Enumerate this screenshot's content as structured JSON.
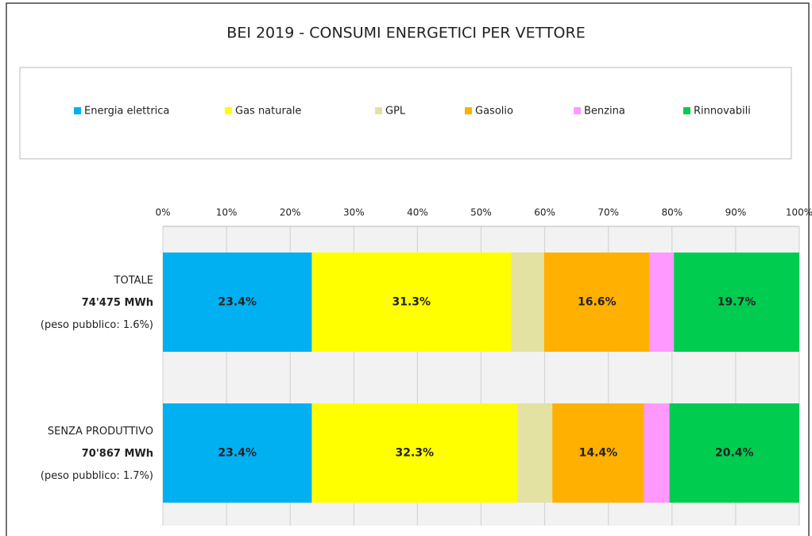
{
  "chart_data": {
    "type": "stacked-bar-horizontal",
    "title": "BEI 2019 - CONSUMI ENERGETICI PER VETTORE",
    "categories": [
      [
        "TOTALE",
        "74'475 MWh",
        "(peso pubblico: 1.6%)"
      ],
      [
        "SENZA PRODUTTIVO",
        "70'867 MWh",
        "(peso pubblico: 1.7%)"
      ]
    ],
    "series": [
      {
        "name": "Energia elettrica",
        "color": "#00b0f0",
        "values": [
          23.4,
          23.4
        ],
        "value_labels": [
          "23.4%",
          "23.4%"
        ]
      },
      {
        "name": "Gas naturale",
        "color": "#ffff00",
        "values": [
          31.3,
          32.3
        ],
        "value_labels": [
          "31.3%",
          "32.3%"
        ]
      },
      {
        "name": "GPL",
        "color": "#e4e2a2",
        "values": [
          5.2,
          5.5
        ]
      },
      {
        "name": "Gasolio",
        "color": "#ffb000",
        "values": [
          16.6,
          14.4
        ],
        "value_labels": [
          "16.6%",
          "14.4%"
        ]
      },
      {
        "name": "Benzina",
        "color": "#ff99ff",
        "values": [
          3.8,
          4.0
        ]
      },
      {
        "name": "Rinnovabili",
        "color": "#00cc50",
        "values": [
          19.7,
          20.4
        ],
        "value_labels": [
          "19.7%",
          "20.4%"
        ]
      }
    ],
    "xlim": [
      0,
      100
    ],
    "xticks": [
      {
        "value": 0,
        "label": "0%"
      },
      {
        "value": 10,
        "label": "10%"
      },
      {
        "value": 20,
        "label": "20%"
      },
      {
        "value": 30,
        "label": "30%"
      },
      {
        "value": 40,
        "label": "40%"
      },
      {
        "value": 50,
        "label": "50%"
      },
      {
        "value": 60,
        "label": "60%"
      },
      {
        "value": 70,
        "label": "70%"
      },
      {
        "value": 80,
        "label": "80%"
      },
      {
        "value": 90,
        "label": "90%"
      },
      {
        "value": 100,
        "label": "100%"
      }
    ],
    "grid": true,
    "legend": "top"
  }
}
